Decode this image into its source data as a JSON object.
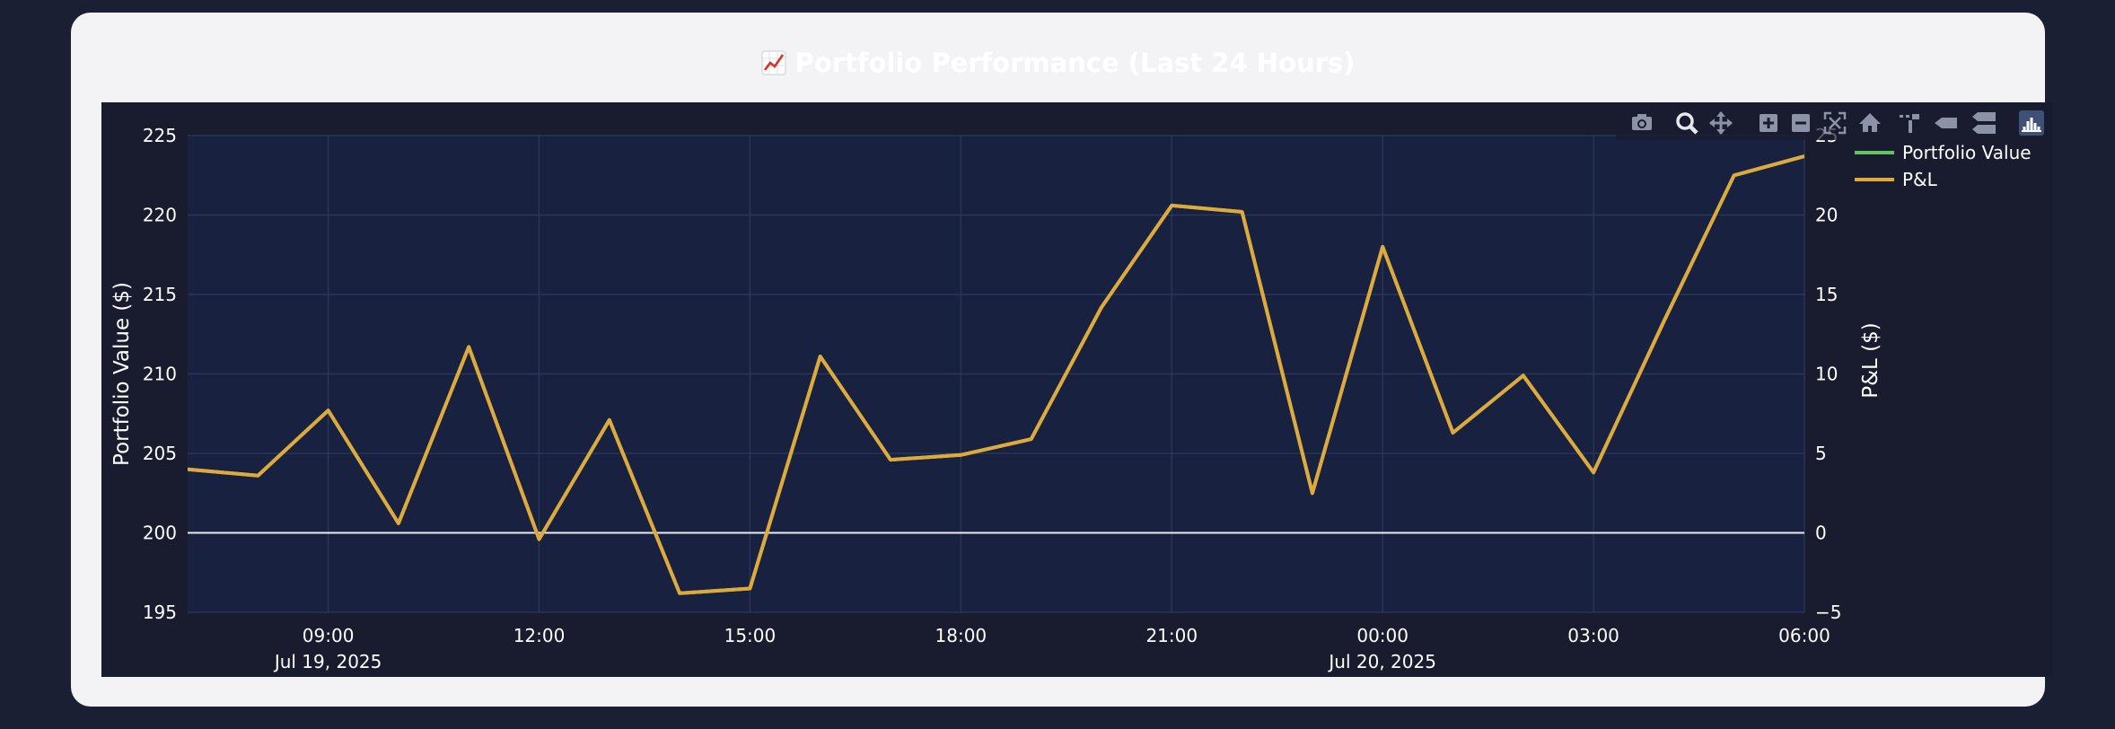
{
  "header": {
    "title": "Portfolio Performance (Last 24 Hours)",
    "title_icon": "chart-increasing-emoji"
  },
  "modebar": {
    "buttons": [
      "camera-icon",
      "zoom-icon",
      "pan-icon",
      "zoom-in-icon",
      "zoom-out-icon",
      "autoscale-icon",
      "home-icon",
      "spike-lines-icon",
      "hover-closest-icon",
      "hover-compare-icon",
      "plotly-logo-icon"
    ],
    "active": "zoom-icon"
  },
  "colors": {
    "page_bg": "#1b1f33",
    "card_bg": "#f3f3f5",
    "paper_bg": "#191b2f",
    "plot_bg": "#18213f",
    "grid": "#2c3a5c",
    "portfolio_value": "#62c462",
    "pnl": "#e0a93c"
  },
  "chart_data": {
    "type": "line",
    "title": "Portfolio Performance (Last 24 Hours)",
    "xlabel": "",
    "ylabel": "Portfolio Value ($)",
    "y2label": "P&L ($)",
    "xlim": [
      "2025-07-19 07:00",
      "2025-07-20 06:00"
    ],
    "ylim": [
      195,
      225
    ],
    "y2lim": [
      -5,
      25
    ],
    "x_ticks": [
      {
        "t": "2025-07-19 09:00",
        "label": "09:00",
        "sub": "Jul 19, 2025"
      },
      {
        "t": "2025-07-19 12:00",
        "label": "12:00",
        "sub": ""
      },
      {
        "t": "2025-07-19 15:00",
        "label": "15:00",
        "sub": ""
      },
      {
        "t": "2025-07-19 18:00",
        "label": "18:00",
        "sub": ""
      },
      {
        "t": "2025-07-19 21:00",
        "label": "21:00",
        "sub": ""
      },
      {
        "t": "2025-07-20 00:00",
        "label": "00:00",
        "sub": "Jul 20, 2025"
      },
      {
        "t": "2025-07-20 03:00",
        "label": "03:00",
        "sub": ""
      },
      {
        "t": "2025-07-20 06:00",
        "label": "06:00",
        "sub": ""
      }
    ],
    "y_ticks": [
      195,
      200,
      205,
      210,
      215,
      220,
      225
    ],
    "y2_ticks": [
      "−5",
      "0",
      "5",
      "10",
      "15",
      "20",
      "25"
    ],
    "grid": true,
    "zero_line_y2": 0,
    "legend_position": "top-right",
    "series": [
      {
        "name": "Portfolio Value",
        "axis": "y",
        "x": [
          "2025-07-19 07:00",
          "2025-07-19 08:00",
          "2025-07-19 09:00",
          "2025-07-19 10:00",
          "2025-07-19 11:00",
          "2025-07-19 12:00",
          "2025-07-19 13:00",
          "2025-07-19 14:00",
          "2025-07-19 15:00",
          "2025-07-19 16:00",
          "2025-07-19 17:00",
          "2025-07-19 18:00",
          "2025-07-19 19:00",
          "2025-07-19 20:00",
          "2025-07-19 21:00",
          "2025-07-19 22:00",
          "2025-07-19 23:00",
          "2025-07-20 00:00",
          "2025-07-20 01:00",
          "2025-07-20 02:00",
          "2025-07-20 03:00",
          "2025-07-20 04:00",
          "2025-07-20 05:00",
          "2025-07-20 06:00"
        ],
        "values": [
          204.0,
          203.6,
          207.7,
          200.6,
          211.7,
          199.6,
          207.1,
          196.2,
          196.5,
          211.1,
          204.6,
          204.9,
          205.9,
          214.2,
          220.6,
          220.2,
          202.5,
          218.0,
          206.3,
          209.9,
          203.8,
          213.3,
          222.5,
          223.7
        ]
      },
      {
        "name": "P&L",
        "axis": "y2",
        "x": [
          "2025-07-19 07:00",
          "2025-07-19 08:00",
          "2025-07-19 09:00",
          "2025-07-19 10:00",
          "2025-07-19 11:00",
          "2025-07-19 12:00",
          "2025-07-19 13:00",
          "2025-07-19 14:00",
          "2025-07-19 15:00",
          "2025-07-19 16:00",
          "2025-07-19 17:00",
          "2025-07-19 18:00",
          "2025-07-19 19:00",
          "2025-07-19 20:00",
          "2025-07-19 21:00",
          "2025-07-19 22:00",
          "2025-07-19 23:00",
          "2025-07-20 00:00",
          "2025-07-20 01:00",
          "2025-07-20 02:00",
          "2025-07-20 03:00",
          "2025-07-20 04:00",
          "2025-07-20 05:00",
          "2025-07-20 06:00"
        ],
        "values": [
          4.0,
          3.6,
          7.7,
          0.6,
          11.7,
          -0.4,
          7.1,
          -3.8,
          -3.5,
          11.1,
          4.6,
          4.9,
          5.9,
          14.2,
          20.6,
          20.2,
          2.5,
          18.0,
          6.3,
          9.9,
          3.8,
          13.3,
          22.5,
          23.7
        ]
      }
    ]
  }
}
